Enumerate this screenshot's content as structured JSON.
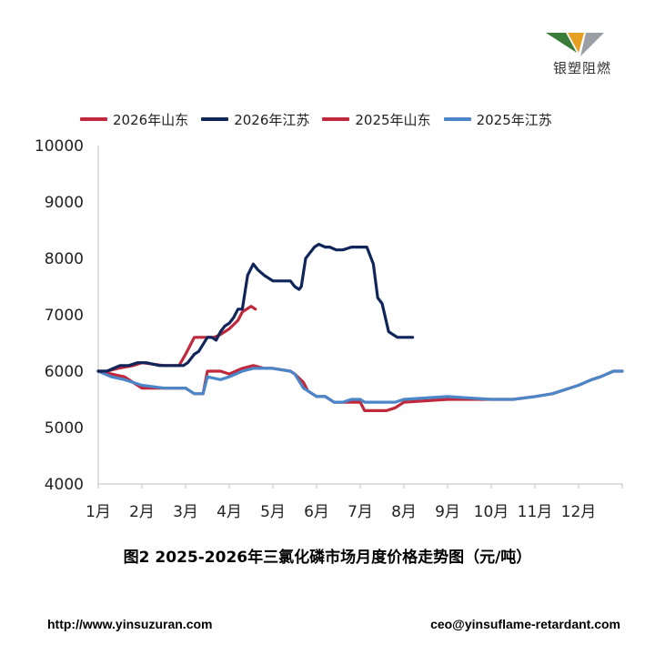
{
  "branding": {
    "logo_text": "银塑阻燃",
    "logo_colors": {
      "left": "#3a7d3a",
      "middle": "#e8a023",
      "right": "#9aa0a6"
    }
  },
  "caption": "图2 2025-2026年三氯化磷市场月度价格走势图（元/吨）",
  "footer": {
    "website": "http://www.yinsuzuran.com",
    "email": "ceo@yinsuflame-retardant.com"
  },
  "chart_data": {
    "type": "line",
    "title": "",
    "xlabel": "",
    "ylabel": "",
    "x_ticks": [
      "1月",
      "2月",
      "3月",
      "4月",
      "5月",
      "6月",
      "7月",
      "8月",
      "9月",
      "10月",
      "11月",
      "12月"
    ],
    "xlim": [
      1,
      13
    ],
    "ylim": [
      4000,
      10000
    ],
    "y_ticks": [
      4000,
      5000,
      6000,
      7000,
      8000,
      9000,
      10000
    ],
    "grid": false,
    "legend_position": "top",
    "series": [
      {
        "name": "2026年山东",
        "color": "#c0283b",
        "x": [
          1.0,
          1.2,
          1.45,
          1.8,
          2.0,
          2.5,
          2.85,
          3.0,
          3.1,
          3.2,
          3.45,
          3.55,
          3.65,
          3.8,
          4.0,
          4.2,
          4.3,
          4.5,
          4.6
        ],
        "values": [
          6000,
          6000,
          6050,
          6100,
          6150,
          6100,
          6100,
          6300,
          6450,
          6600,
          6600,
          6600,
          6600,
          6650,
          6750,
          6900,
          7050,
          7150,
          7100
        ]
      },
      {
        "name": "2026年江苏",
        "color": "#10255a",
        "x": [
          1.0,
          1.1,
          1.2,
          1.35,
          1.5,
          1.7,
          1.9,
          2.1,
          2.4,
          2.5,
          2.7,
          2.95,
          3.05,
          3.2,
          3.3,
          3.5,
          3.6,
          3.7,
          3.8,
          3.9,
          4.0,
          4.1,
          4.2,
          4.3,
          4.42,
          4.55,
          4.65,
          4.8,
          5.0,
          5.2,
          5.4,
          5.5,
          5.6,
          5.65,
          5.75,
          5.85,
          5.95,
          6.05,
          6.2,
          6.3,
          6.45,
          6.6,
          6.8,
          7.0,
          7.15,
          7.3,
          7.4,
          7.5,
          7.65,
          7.85,
          8.0,
          8.2
        ],
        "values": [
          6000,
          6000,
          6000,
          6050,
          6100,
          6100,
          6150,
          6150,
          6100,
          6100,
          6100,
          6100,
          6150,
          6300,
          6350,
          6600,
          6600,
          6550,
          6700,
          6800,
          6850,
          6950,
          7100,
          7100,
          7700,
          7900,
          7800,
          7700,
          7600,
          7600,
          7600,
          7500,
          7450,
          7500,
          8000,
          8100,
          8200,
          8250,
          8200,
          8200,
          8150,
          8150,
          8200,
          8200,
          8200,
          7900,
          7300,
          7200,
          6700,
          6600,
          6600,
          6600
        ]
      },
      {
        "name": "2025年山东",
        "color": "#c0283b",
        "x": [
          1.0,
          1.3,
          1.6,
          2.0,
          2.5,
          3.0,
          3.2,
          3.4,
          3.5,
          3.8,
          4.0,
          4.3,
          4.55,
          4.8,
          5.0,
          5.4,
          5.5,
          5.7,
          5.8,
          6.0,
          6.2,
          6.4,
          6.6,
          6.8,
          7.0,
          7.1,
          7.3,
          7.6,
          7.8,
          8.0,
          9.0,
          10.0,
          10.5,
          11.0,
          11.4,
          11.8,
          12.0,
          12.3,
          12.5,
          12.8,
          13.0
        ],
        "values": [
          6000,
          5950,
          5900,
          5700,
          5700,
          5700,
          5600,
          5600,
          6000,
          6000,
          5950,
          6050,
          6100,
          6050,
          6050,
          6000,
          5950,
          5800,
          5650,
          5550,
          5550,
          5450,
          5450,
          5450,
          5450,
          5300,
          5300,
          5300,
          5350,
          5450,
          5500,
          5500,
          5500,
          5550,
          5600,
          5700,
          5750,
          5850,
          5900,
          6000,
          6000
        ]
      },
      {
        "name": "2025年江苏",
        "color": "#4a86c8",
        "x": [
          1.0,
          1.3,
          1.6,
          2.0,
          2.5,
          3.0,
          3.2,
          3.4,
          3.5,
          3.8,
          4.0,
          4.3,
          4.55,
          4.8,
          5.0,
          5.4,
          5.5,
          5.7,
          5.8,
          6.0,
          6.2,
          6.4,
          6.6,
          6.8,
          7.0,
          7.1,
          7.3,
          7.6,
          7.8,
          8.0,
          9.0,
          10.0,
          10.5,
          11.0,
          11.4,
          11.8,
          12.0,
          12.3,
          12.5,
          12.8,
          13.0
        ],
        "values": [
          6000,
          5900,
          5850,
          5750,
          5700,
          5700,
          5600,
          5600,
          5900,
          5850,
          5900,
          6000,
          6050,
          6050,
          6050,
          6000,
          5950,
          5700,
          5650,
          5550,
          5550,
          5450,
          5450,
          5500,
          5500,
          5450,
          5450,
          5450,
          5450,
          5500,
          5550,
          5500,
          5500,
          5550,
          5600,
          5700,
          5750,
          5850,
          5900,
          6000,
          6000
        ]
      }
    ]
  }
}
